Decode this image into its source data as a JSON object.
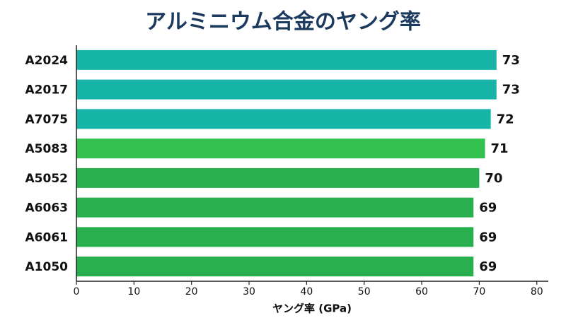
{
  "chart_data": {
    "type": "hbar",
    "title": "アルミニウム合金のヤング率",
    "categories": [
      "A2024",
      "A2017",
      "A7075",
      "A5083",
      "A5052",
      "A6063",
      "A6061",
      "A1050"
    ],
    "values": [
      73,
      73,
      72,
      71,
      70,
      69,
      69,
      69
    ],
    "colors": [
      "#17b5a7",
      "#17b5a7",
      "#17b5a7",
      "#33c24f",
      "#28b04e",
      "#28b04e",
      "#28b04e",
      "#28b04e"
    ],
    "xlabel": "ヤング率 (GPa)",
    "xlim": [
      0,
      82
    ],
    "xticks": [
      0,
      10,
      20,
      30,
      40,
      50,
      60,
      70,
      80
    ],
    "grid": false
  }
}
